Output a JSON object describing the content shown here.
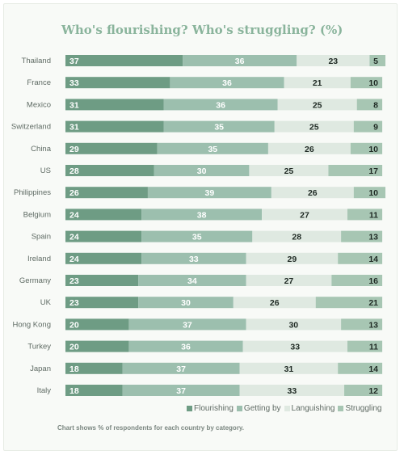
{
  "chart_data": {
    "type": "bar",
    "orientation": "horizontal",
    "stacked": true,
    "title": "Who's flourishing? Who's struggling? (%)",
    "xlabel": "",
    "ylabel": "",
    "xlim": [
      0,
      100
    ],
    "grid": false,
    "legend_position": "bottom-right",
    "categories": [
      "Thailand",
      "France",
      "Mexico",
      "Switzerland",
      "China",
      "US",
      "Philippines",
      "Belgium",
      "Spain",
      "Ireland",
      "Germany",
      "UK",
      "Hong Kong",
      "Turkey",
      "Japan",
      "Italy"
    ],
    "series": [
      {
        "name": "Flourishing",
        "color": "#6e9c84",
        "text_color": "#ffffff",
        "values": [
          37,
          33,
          31,
          31,
          29,
          28,
          26,
          24,
          24,
          24,
          23,
          23,
          20,
          20,
          18,
          18
        ]
      },
      {
        "name": "Getting by",
        "color": "#9cbfae",
        "text_color": "#ffffff",
        "values": [
          36,
          36,
          36,
          35,
          35,
          30,
          39,
          38,
          35,
          33,
          34,
          30,
          37,
          36,
          37,
          37
        ]
      },
      {
        "name": "Languishing",
        "color": "#dfe9e1",
        "text_color": "#1f2a24",
        "values": [
          23,
          21,
          25,
          25,
          26,
          25,
          26,
          27,
          28,
          29,
          27,
          26,
          30,
          33,
          31,
          33
        ]
      },
      {
        "name": "Struggling",
        "color": "#a7c6b3",
        "text_color": "#1f2a24",
        "values": [
          5,
          10,
          8,
          9,
          10,
          17,
          10,
          11,
          13,
          14,
          16,
          21,
          13,
          11,
          14,
          12
        ]
      }
    ],
    "note": "Chart shows % of respondents for each country by category."
  }
}
